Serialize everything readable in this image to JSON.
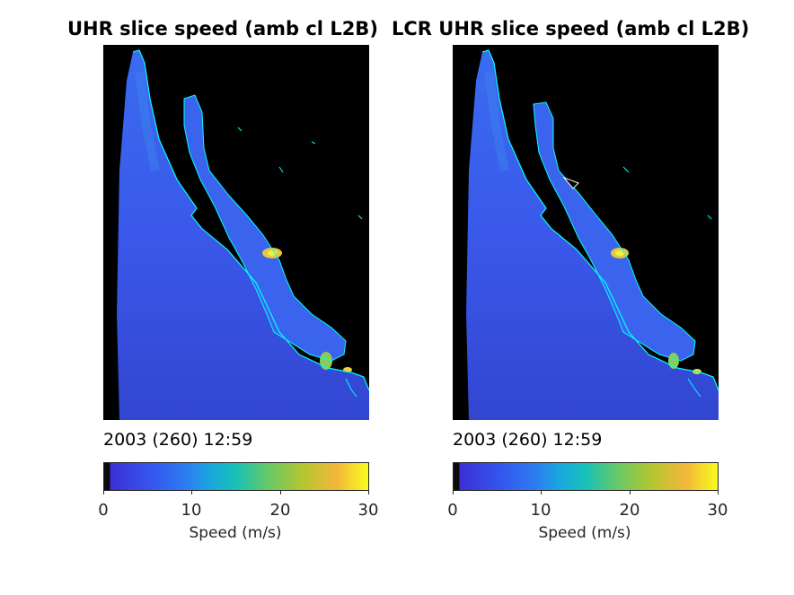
{
  "panels": [
    {
      "title": "UHR slice speed (amb cl L2B)",
      "timestamp": "2003 (260) 12:59",
      "colorbar": {
        "ticks": [
          "0",
          "10",
          "20",
          "30"
        ],
        "label": "Speed (m/s)",
        "range": [
          0,
          30
        ]
      }
    },
    {
      "title": "LCR UHR slice speed (amb cl L2B)",
      "timestamp": "2003 (260) 12:59",
      "colorbar": {
        "ticks": [
          "0",
          "10",
          "20",
          "30"
        ],
        "label": "Speed (m/s)",
        "range": [
          0,
          30
        ]
      }
    }
  ],
  "colors": {
    "land": "#000000",
    "coastline": "#00ffff",
    "ocean_base": "#3a58ea",
    "ocean_dark": "#3240c8",
    "ocean_light": "#2e8ef0",
    "high_wind": "#f7e338"
  }
}
